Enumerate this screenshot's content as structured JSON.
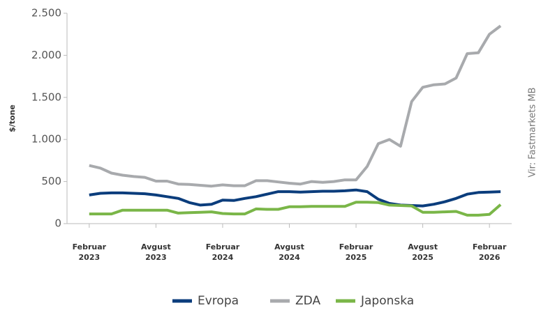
{
  "chart_data": {
    "type": "line",
    "y_label": "$/tone",
    "source": "Vir: Fastmarkets MB",
    "x": [
      "2023-02",
      "2023-03",
      "2023-04",
      "2023-05",
      "2023-06",
      "2023-07",
      "2023-08",
      "2023-09",
      "2023-10",
      "2023-11",
      "2023-12",
      "2024-01",
      "2024-02",
      "2024-03",
      "2024-04",
      "2024-05",
      "2024-06",
      "2024-07",
      "2024-08",
      "2024-09",
      "2024-10",
      "2024-11",
      "2024-12",
      "2025-01",
      "2025-02",
      "2025-03",
      "2025-04",
      "2025-05",
      "2025-06",
      "2025-07",
      "2025-08",
      "2025-09",
      "2025-10",
      "2025-11",
      "2025-12",
      "2026-01",
      "2026-02",
      "2026-03"
    ],
    "series": [
      {
        "name": "Evropa",
        "color": "#0b3d7c",
        "values": [
          340,
          360,
          365,
          365,
          360,
          355,
          340,
          320,
          300,
          250,
          220,
          230,
          280,
          275,
          300,
          320,
          350,
          380,
          380,
          375,
          380,
          385,
          385,
          390,
          400,
          380,
          290,
          240,
          220,
          215,
          210,
          230,
          260,
          300,
          350,
          370,
          375,
          380
        ]
      },
      {
        "name": "ZDA",
        "color": "#a8aaad",
        "values": [
          690,
          660,
          600,
          575,
          560,
          550,
          505,
          505,
          470,
          465,
          455,
          445,
          460,
          450,
          450,
          510,
          510,
          495,
          480,
          470,
          500,
          490,
          500,
          520,
          520,
          680,
          950,
          1000,
          920,
          1450,
          1620,
          1650,
          1660,
          1730,
          2020,
          2030,
          2250,
          2350
        ]
      },
      {
        "name": "Japonska",
        "color": "#7ab648",
        "values": [
          115,
          115,
          115,
          160,
          160,
          160,
          160,
          160,
          125,
          130,
          135,
          140,
          120,
          115,
          115,
          175,
          170,
          170,
          200,
          200,
          205,
          205,
          205,
          205,
          255,
          255,
          250,
          220,
          215,
          210,
          135,
          135,
          140,
          145,
          100,
          100,
          110,
          225
        ]
      }
    ],
    "xlim": [
      "2022-12",
      "2026-04"
    ],
    "xticks": [
      {
        "value": "2023-02",
        "label": "Februar 2023"
      },
      {
        "value": "2023-08",
        "label": "Avgust 2023"
      },
      {
        "value": "2024-02",
        "label": "Februar 2024"
      },
      {
        "value": "2024-08",
        "label": "Avgust 2024"
      },
      {
        "value": "2025-02",
        "label": "Februar 2025"
      },
      {
        "value": "2025-08",
        "label": "Avgust 2025"
      },
      {
        "value": "2026-02",
        "label": "Februar 2026"
      }
    ],
    "ylim": [
      0,
      2500
    ],
    "yticks": [
      0,
      500,
      {
        "value": 1000,
        "label": "1.000"
      },
      {
        "value": 1500,
        "label": "1.500"
      },
      {
        "value": 2000,
        "label": "2.000"
      },
      {
        "value": 2500,
        "label": "2.500"
      }
    ],
    "legend": "bottom"
  }
}
